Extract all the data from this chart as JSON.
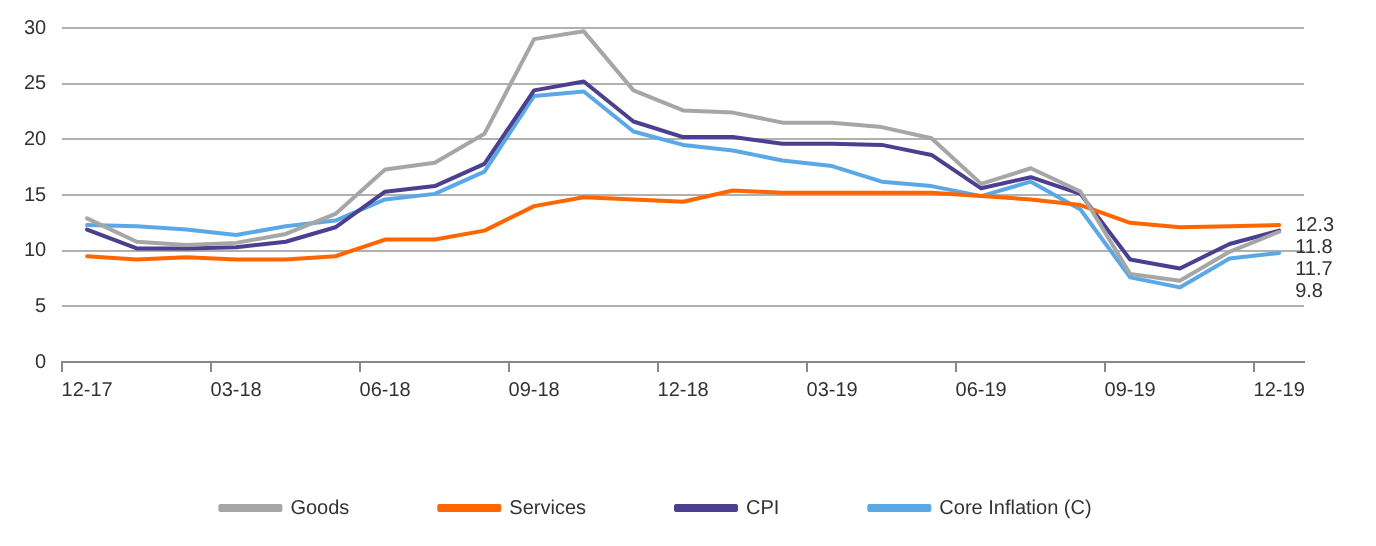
{
  "chart_data": {
    "type": "line",
    "categories": [
      "12-17",
      null,
      null,
      "03-18",
      null,
      null,
      "06-18",
      null,
      null,
      "09-18",
      null,
      null,
      "12-18",
      null,
      null,
      "03-19",
      null,
      null,
      "06-19",
      null,
      null,
      "09-19",
      null,
      null,
      "12-19"
    ],
    "series": [
      {
        "name": "Goods",
        "color": "#a6a6a6",
        "values": [
          12.9,
          10.8,
          10.5,
          10.7,
          11.5,
          13.3,
          17.3,
          17.9,
          20.5,
          29.0,
          29.7,
          24.4,
          22.6,
          22.4,
          21.5,
          21.5,
          21.1,
          20.1,
          16.0,
          17.4,
          15.3,
          7.9,
          7.3,
          9.9,
          11.7
        ],
        "value_labels": [
          null,
          null,
          null,
          null,
          null,
          null,
          null,
          null,
          null,
          null,
          null,
          null,
          null,
          null,
          null,
          null,
          null,
          null,
          null,
          null,
          null,
          null,
          null,
          null,
          "11.7"
        ]
      },
      {
        "name": "Services",
        "color": "#ff6600",
        "values": [
          9.5,
          9.2,
          9.4,
          9.2,
          9.2,
          9.5,
          11.0,
          11.0,
          11.8,
          14.0,
          14.8,
          14.6,
          14.4,
          15.4,
          15.2,
          15.2,
          15.2,
          15.2,
          14.9,
          14.6,
          14.1,
          12.5,
          12.1,
          12.2,
          12.3
        ],
        "value_labels": [
          null,
          null,
          null,
          null,
          null,
          null,
          null,
          null,
          null,
          null,
          null,
          null,
          null,
          null,
          null,
          null,
          null,
          null,
          null,
          null,
          null,
          null,
          null,
          null,
          "12.3"
        ]
      },
      {
        "name": "CPI",
        "color": "#4b3f8f",
        "values": [
          11.9,
          10.2,
          10.2,
          10.3,
          10.8,
          12.1,
          15.3,
          15.8,
          17.8,
          24.4,
          25.2,
          21.6,
          20.2,
          20.2,
          19.6,
          19.6,
          19.5,
          18.6,
          15.6,
          16.6,
          15.1,
          9.2,
          8.4,
          10.6,
          11.8
        ],
        "value_labels": [
          null,
          null,
          null,
          null,
          null,
          null,
          null,
          null,
          null,
          null,
          null,
          null,
          null,
          null,
          null,
          null,
          null,
          null,
          null,
          null,
          null,
          null,
          null,
          null,
          "11.8"
        ]
      },
      {
        "name": "Core Inflation (C)",
        "color": "#5aa9e6",
        "values": [
          12.3,
          12.2,
          11.9,
          11.4,
          12.2,
          12.7,
          14.6,
          15.1,
          17.1,
          23.9,
          24.3,
          20.7,
          19.5,
          19.0,
          18.1,
          17.6,
          16.2,
          15.8,
          14.9,
          16.2,
          13.7,
          7.6,
          6.7,
          9.3,
          9.8
        ],
        "value_labels": [
          null,
          null,
          null,
          null,
          null,
          null,
          null,
          null,
          null,
          null,
          null,
          null,
          null,
          null,
          null,
          null,
          null,
          null,
          null,
          null,
          null,
          null,
          null,
          null,
          "9.8"
        ]
      }
    ],
    "ylim": [
      0,
      30
    ],
    "yticks": [
      0,
      5,
      10,
      15,
      20,
      25,
      30
    ],
    "grid": "y",
    "legend": "bottom",
    "marker": "none",
    "line_style": "solid"
  }
}
